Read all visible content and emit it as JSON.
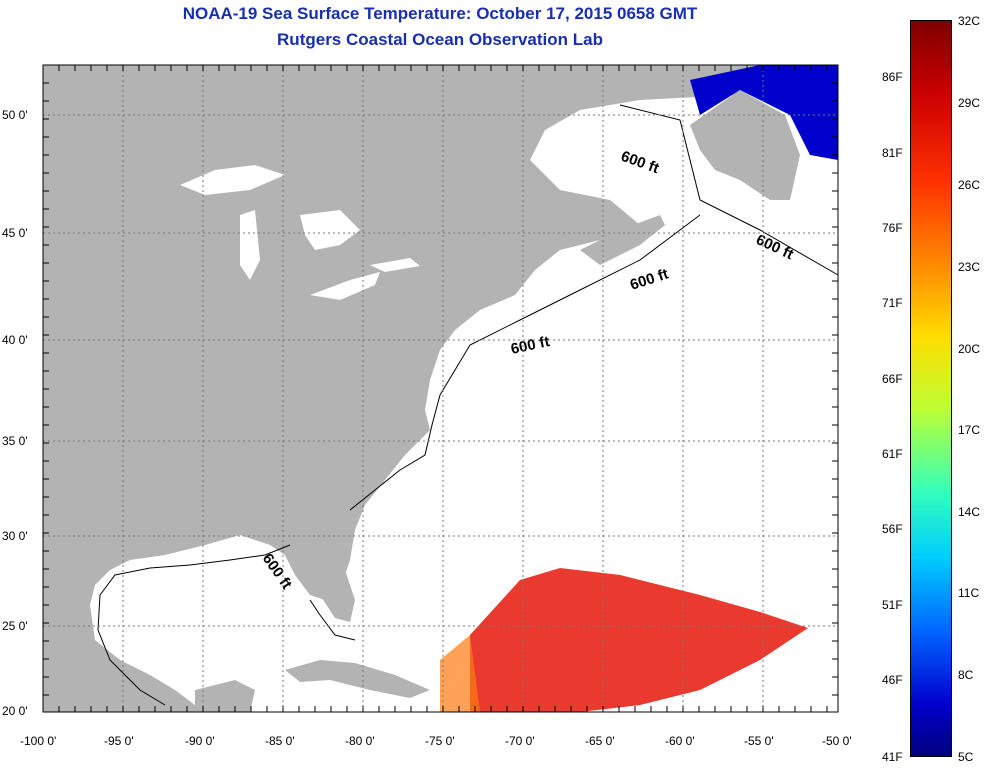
{
  "title": "NOAA-19 Sea Surface Temperature:  October 17, 2015 0658 GMT",
  "subtitle": "Rutgers Coastal Ocean Observation Lab",
  "lat_labels": [
    "50 0'",
    "45 0'",
    "40 0'",
    "35 0'",
    "30 0'",
    "25 0'",
    "20 0'"
  ],
  "lon_labels": [
    "-100 0'",
    "-95 0'",
    "-90 0'",
    "-85 0'",
    "-80 0'",
    "-75 0'",
    "-70 0'",
    "-65 0'",
    "-60 0'",
    "-55 0'",
    "-50 0'"
  ],
  "isobath_label": "600 ft",
  "colorbar": {
    "celsius": [
      "32C",
      "29C",
      "26C",
      "23C",
      "20C",
      "17C",
      "14C",
      "11C",
      "8C",
      "5C"
    ],
    "fahrenheit": [
      "86F",
      "81F",
      "76F",
      "71F",
      "66F",
      "61F",
      "56F",
      "51F",
      "46F",
      "41F"
    ]
  },
  "colors": {
    "land": "#b3b3b3",
    "ocean": "#ffffff",
    "title": "#1a2fb0",
    "sst_warm": "#e8281c",
    "sst_cold": "#0000cc"
  }
}
